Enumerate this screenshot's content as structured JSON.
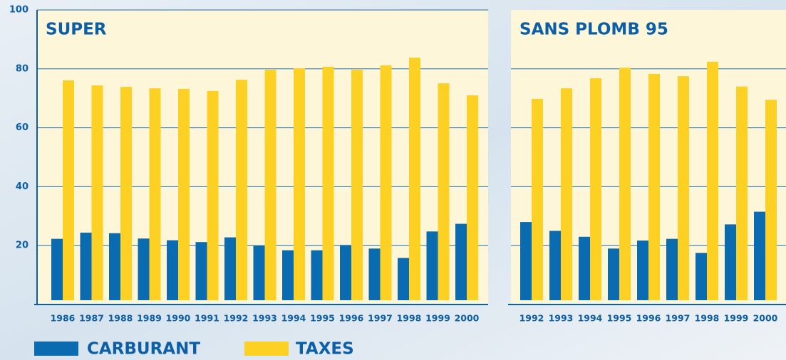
{
  "chart_data": [
    {
      "type": "bar",
      "title": "SUPER",
      "categories": [
        "1986",
        "1987",
        "1988",
        "1989",
        "1990",
        "1991",
        "1992",
        "1993",
        "1994",
        "1995",
        "1996",
        "1997",
        "1998",
        "1999",
        "2000"
      ],
      "series": [
        {
          "name": "CARBURANT",
          "color": "#0b6bb0",
          "values": [
            22.3,
            24.4,
            24.2,
            22.4,
            21.8,
            21.2,
            22.8,
            20,
            18.4,
            18.4,
            20.2,
            19,
            15.8,
            24.8,
            27.4
          ]
        },
        {
          "name": "TAXES",
          "color": "#fdd024",
          "values": [
            76.1,
            74.4,
            73.9,
            73.4,
            73.2,
            72.5,
            76.3,
            79.7,
            80.2,
            80.7,
            79.7,
            81.2,
            83.8,
            75.1,
            71
          ]
        }
      ],
      "ylim": [
        0,
        100
      ],
      "yticks": [
        20,
        40,
        60,
        80,
        100
      ],
      "grid": true
    },
    {
      "type": "bar",
      "title": "SANS PLOMB 95",
      "categories": [
        "1992",
        "1993",
        "1994",
        "1995",
        "1996",
        "1997",
        "1998",
        "1999",
        "2000"
      ],
      "series": [
        {
          "color": "#0b6bb0",
          "values": [
            28,
            25,
            23,
            19,
            21.7,
            22.3,
            17.5,
            27.2,
            31.5
          ]
        },
        {
          "color": "#fdd024",
          "values": [
            69.8,
            73.4,
            76.8,
            80.4,
            78.3,
            77.5,
            82.4,
            74,
            69.5
          ]
        }
      ],
      "ylim": [
        0,
        100
      ],
      "yticks": [
        20,
        40,
        60,
        80
      ],
      "grid": true
    }
  ]
}
